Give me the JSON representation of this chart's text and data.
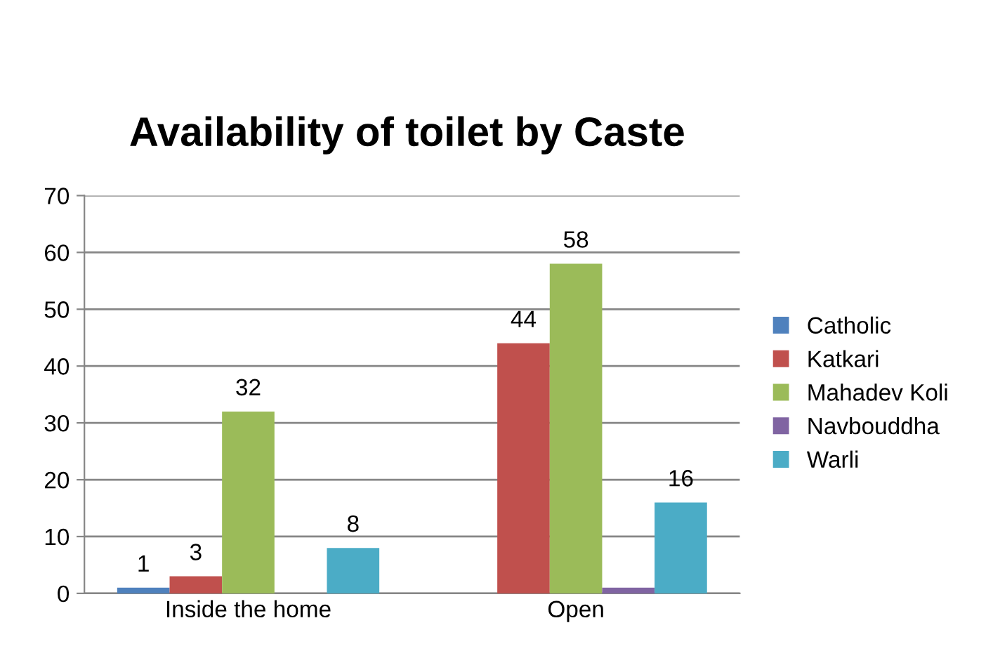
{
  "chart_data": {
    "type": "bar",
    "title": "Availability of toilet by Caste",
    "categories": [
      "Inside the home",
      "Open"
    ],
    "series": [
      {
        "name": "Catholic",
        "color": "#4f81bd",
        "values": [
          1,
          null
        ],
        "value_labels": [
          "1",
          null
        ]
      },
      {
        "name": "Katkari",
        "color": "#c0504d",
        "values": [
          3,
          44
        ],
        "value_labels": [
          "3",
          "44"
        ]
      },
      {
        "name": "Mahadev Koli",
        "color": "#9bbb59",
        "values": [
          32,
          58
        ],
        "value_labels": [
          "32",
          "58"
        ]
      },
      {
        "name": "Navbouddha",
        "color": "#8064a2",
        "values": [
          null,
          1
        ],
        "value_labels": [
          null,
          null
        ]
      },
      {
        "name": "Warli",
        "color": "#4bacc6",
        "values": [
          8,
          16
        ],
        "value_labels": [
          "8",
          "16"
        ]
      }
    ],
    "ylim": [
      0,
      70
    ],
    "yticks": [
      0,
      10,
      20,
      30,
      40,
      50,
      60,
      70
    ],
    "grid": "y",
    "legend": "right"
  }
}
